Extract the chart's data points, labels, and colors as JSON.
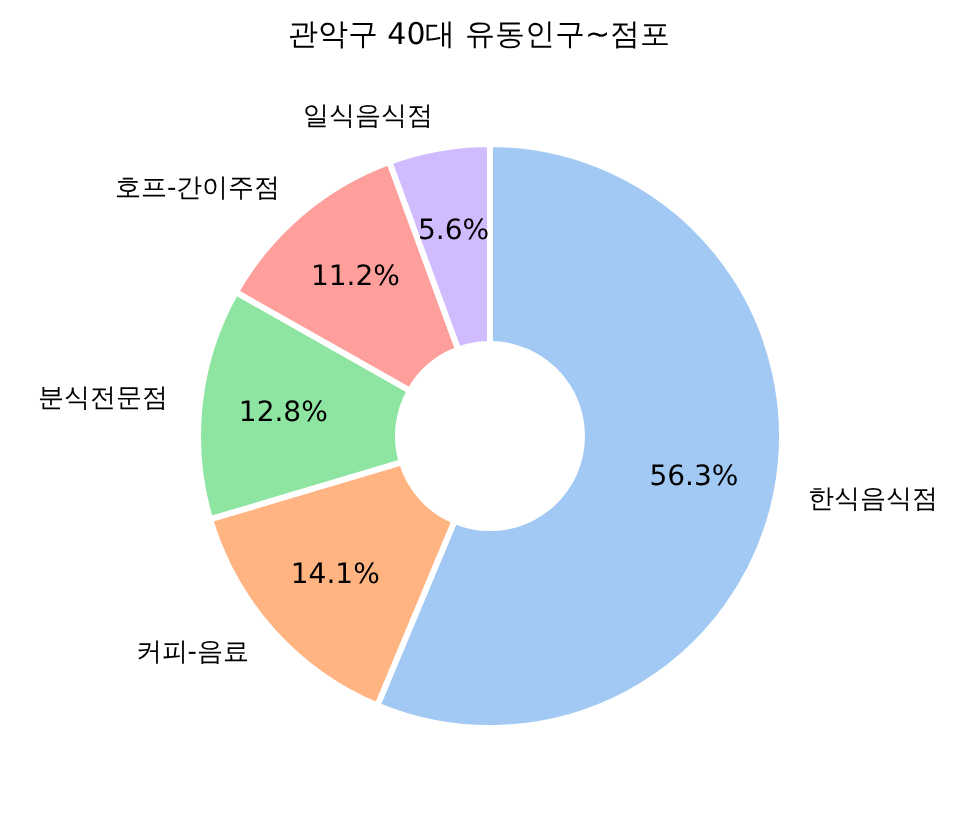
{
  "chart_data": {
    "type": "donut",
    "title": "관악구 40대 유동인구~점포",
    "categories": [
      "한식음식점",
      "커피-음료",
      "분식전문점",
      "호프-간이주점",
      "일식음식점"
    ],
    "values": [
      56.3,
      14.1,
      12.8,
      11.2,
      5.6
    ],
    "value_labels": [
      "56.3%",
      "14.1%",
      "12.8%",
      "11.2%",
      "5.6%"
    ],
    "colors": [
      "#a1c9f4",
      "#ffb482",
      "#8de5a1",
      "#ff9f9b",
      "#d0bbff"
    ],
    "legend": false
  }
}
